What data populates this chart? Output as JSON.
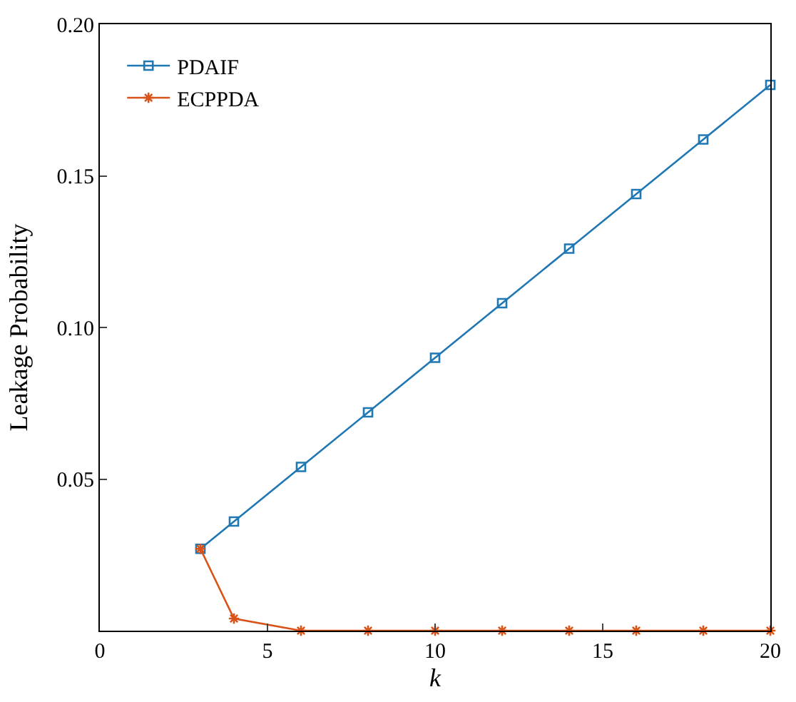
{
  "chart_data": {
    "type": "line",
    "xlabel": "k",
    "ylabel": "Leakage Probability",
    "x": [
      3,
      4,
      6,
      8,
      10,
      12,
      14,
      16,
      18,
      20
    ],
    "series": [
      {
        "name": "PDAIF",
        "color": "#1f77b4",
        "marker": "square",
        "values": [
          0.027,
          0.036,
          0.054,
          0.072,
          0.09,
          0.108,
          0.126,
          0.144,
          0.162,
          0.18
        ]
      },
      {
        "name": "ECPPDA",
        "color": "#d95319",
        "marker": "cross",
        "values": [
          0.027,
          0.004,
          0,
          0,
          0,
          0,
          0,
          0,
          0,
          0
        ]
      }
    ],
    "xlim": [
      0,
      20
    ],
    "xticks": [
      0,
      5,
      10,
      15,
      20
    ],
    "ylim": [
      0,
      0.2
    ],
    "yticks": [
      {
        "value": 0.05,
        "label": "0.05"
      },
      {
        "value": 0.1,
        "label": "0.10"
      },
      {
        "value": 0.15,
        "label": "0.15"
      },
      {
        "value": 0.2,
        "label": "0.20"
      }
    ],
    "legend": "top left",
    "line_style": "solid"
  }
}
